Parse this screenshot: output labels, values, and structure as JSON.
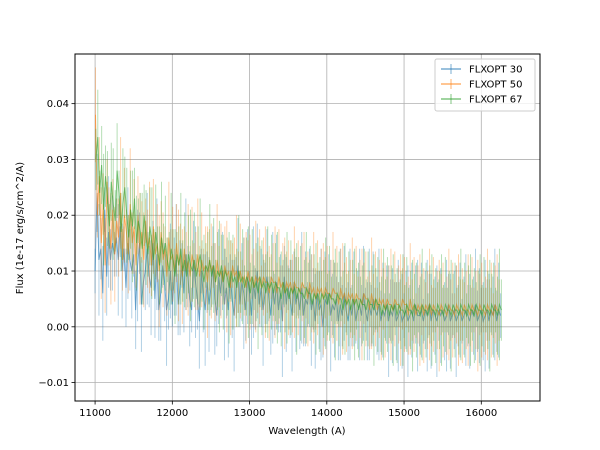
{
  "chart_data": {
    "type": "line",
    "title": "",
    "xlabel": "Wavelength (A)",
    "ylabel": "Flux (1e-17 erg/s/cm^2/A)",
    "xlim": [
      10740,
      16760
    ],
    "ylim": [
      -0.0133,
      0.0489
    ],
    "xticks": [
      11000,
      12000,
      13000,
      14000,
      15000,
      16000
    ],
    "yticks": [
      -0.01,
      0.0,
      0.01,
      0.02,
      0.03,
      0.04
    ],
    "xtick_labels": [
      "11000",
      "12000",
      "13000",
      "14000",
      "15000",
      "16000"
    ],
    "ytick_labels": [
      "−0.01",
      "0.00",
      "0.01",
      "0.02",
      "0.03",
      "0.04"
    ],
    "grid": true,
    "legend_position": "top-right",
    "series": [
      {
        "name": "FLXOPT 30",
        "color": "#1f77b4",
        "x_start": 11000,
        "x_step": 25,
        "values": [
          0.01,
          0.024,
          0.012,
          0.014,
          0.006,
          0.021,
          0.009,
          0.017,
          0.012,
          0.015,
          0.013,
          0.016,
          0.012,
          0.018,
          0.01,
          0.014,
          0.007,
          0.015,
          0.012,
          0.01,
          0.013,
          0.003,
          0.011,
          0.015,
          0.004,
          0.008,
          0.01,
          0.014,
          0.009,
          0.007,
          0.015,
          0.005,
          0.013,
          0.003,
          0.006,
          0.011,
          0.008,
          0.003,
          0.005,
          0.01,
          0.004,
          0.009,
          0.012,
          0.004,
          0.007,
          0.011,
          0.006,
          0.013,
          0.009,
          0.005,
          0.003,
          0.012,
          0.008,
          0.005,
          0.001,
          0.01,
          0.006,
          0.003,
          0.008,
          0.004,
          0.007,
          0.011,
          0.005,
          0.002,
          0.009,
          0.006,
          0.01,
          0.004,
          0.007,
          0.003,
          0.009,
          0.005,
          0.002,
          0.007,
          0.011,
          0.004,
          0.008,
          0.006,
          0.003,
          0.009,
          0.006,
          0.002,
          0.008,
          0.005,
          0.01,
          0.004,
          0.007,
          0.003,
          0.006,
          0.009,
          0.005,
          0.002,
          0.007,
          0.004,
          0.008,
          0.003,
          0.006,
          0.001,
          0.009,
          0.004,
          0.007,
          0.005,
          0.002,
          0.008,
          0.004,
          0.006,
          0.003,
          0.007,
          0.002,
          0.005,
          0.004,
          0.007,
          0.003,
          0.005,
          0.001,
          0.006,
          0.003,
          0.004,
          0.0,
          0.005,
          0.004,
          0.006,
          0.002,
          0.004,
          0.003,
          0.005,
          0.001,
          0.004,
          0.002,
          0.006,
          0.003,
          0.001,
          0.004,
          0.002,
          0.005,
          0.001,
          0.003,
          0.004,
          0.002,
          0.006,
          0.003,
          0.001,
          0.004,
          0.002,
          0.005,
          0.003,
          0.002,
          0.004,
          0.001,
          0.003,
          0.002,
          0.004,
          0.001,
          0.003,
          0.002,
          0.004,
          0.001,
          0.002,
          0.003,
          0.001,
          0.002,
          0.003,
          0.001,
          0.002,
          0.003,
          0.001,
          0.004,
          0.002,
          0.002,
          0.003,
          0.001,
          0.003,
          0.002,
          0.004,
          0.001,
          0.003,
          0.002,
          0.001,
          0.003,
          0.002,
          0.003,
          0.001,
          0.002,
          0.004,
          0.001,
          0.002,
          0.003,
          0.001,
          0.002,
          0.003,
          0.001,
          0.002,
          0.003,
          0.002,
          0.001,
          0.003,
          0.002,
          0.004,
          0.001,
          0.002,
          0.003,
          0.001,
          0.002,
          0.003,
          0.001,
          0.003,
          0.002,
          0.004,
          0.001,
          0.003,
          0.002
        ]
      },
      {
        "name": "FLXOPT 50",
        "color": "#ff7f0e",
        "x_start": 11005,
        "x_step": 25,
        "values": [
          0.038,
          0.02,
          0.027,
          0.015,
          0.022,
          0.011,
          0.026,
          0.018,
          0.014,
          0.021,
          0.013,
          0.019,
          0.016,
          0.024,
          0.012,
          0.02,
          0.017,
          0.013,
          0.022,
          0.015,
          0.018,
          0.011,
          0.02,
          0.014,
          0.017,
          0.012,
          0.019,
          0.014,
          0.016,
          0.011,
          0.018,
          0.013,
          0.015,
          0.01,
          0.017,
          0.012,
          0.014,
          0.009,
          0.016,
          0.012,
          0.013,
          0.01,
          0.015,
          0.011,
          0.013,
          0.009,
          0.014,
          0.01,
          0.012,
          0.009,
          0.013,
          0.011,
          0.01,
          0.013,
          0.009,
          0.012,
          0.01,
          0.011,
          0.008,
          0.012,
          0.01,
          0.011,
          0.008,
          0.012,
          0.009,
          0.01,
          0.008,
          0.011,
          0.009,
          0.01,
          0.007,
          0.011,
          0.009,
          0.01,
          0.008,
          0.01,
          0.008,
          0.009,
          0.007,
          0.01,
          0.008,
          0.009,
          0.007,
          0.009,
          0.008,
          0.009,
          0.007,
          0.009,
          0.008,
          0.008,
          0.006,
          0.009,
          0.008,
          0.008,
          0.006,
          0.009,
          0.007,
          0.008,
          0.006,
          0.008,
          0.007,
          0.008,
          0.006,
          0.008,
          0.007,
          0.007,
          0.006,
          0.008,
          0.007,
          0.007,
          0.005,
          0.008,
          0.006,
          0.007,
          0.005,
          0.007,
          0.006,
          0.007,
          0.005,
          0.007,
          0.006,
          0.006,
          0.005,
          0.007,
          0.006,
          0.006,
          0.004,
          0.007,
          0.005,
          0.006,
          0.004,
          0.006,
          0.005,
          0.006,
          0.004,
          0.006,
          0.005,
          0.005,
          0.004,
          0.006,
          0.005,
          0.005,
          0.003,
          0.006,
          0.004,
          0.005,
          0.003,
          0.005,
          0.004,
          0.005,
          0.003,
          0.005,
          0.004,
          0.004,
          0.003,
          0.005,
          0.004,
          0.004,
          0.003,
          0.005,
          0.004,
          0.004,
          0.002,
          0.005,
          0.003,
          0.004,
          0.002,
          0.004,
          0.003,
          0.004,
          0.002,
          0.004,
          0.003,
          0.004,
          0.002,
          0.004,
          0.003,
          0.003,
          0.002,
          0.004,
          0.003,
          0.003,
          0.002,
          0.004,
          0.003,
          0.003,
          0.002,
          0.004,
          0.003,
          0.003,
          0.002,
          0.004,
          0.003,
          0.003,
          0.002,
          0.004,
          0.003,
          0.003,
          0.002,
          0.004,
          0.003,
          0.003,
          0.002,
          0.004,
          0.003,
          0.003,
          0.002,
          0.004,
          0.003,
          0.003
        ]
      },
      {
        "name": "FLXOPT 67",
        "color": "#2ca02c",
        "x_start": 11010,
        "x_step": 25,
        "values": [
          0.03,
          0.034,
          0.024,
          0.029,
          0.021,
          0.027,
          0.023,
          0.018,
          0.026,
          0.022,
          0.019,
          0.028,
          0.024,
          0.017,
          0.022,
          0.025,
          0.02,
          0.016,
          0.021,
          0.018,
          0.023,
          0.015,
          0.019,
          0.017,
          0.014,
          0.02,
          0.016,
          0.013,
          0.018,
          0.015,
          0.012,
          0.017,
          0.014,
          0.011,
          0.016,
          0.013,
          0.015,
          0.012,
          0.01,
          0.014,
          0.012,
          0.009,
          0.013,
          0.011,
          0.014,
          0.01,
          0.012,
          0.009,
          0.013,
          0.011,
          0.01,
          0.012,
          0.009,
          0.011,
          0.013,
          0.01,
          0.008,
          0.011,
          0.01,
          0.012,
          0.009,
          0.011,
          0.008,
          0.01,
          0.009,
          0.011,
          0.008,
          0.01,
          0.009,
          0.007,
          0.01,
          0.008,
          0.009,
          0.007,
          0.01,
          0.008,
          0.009,
          0.007,
          0.009,
          0.008,
          0.006,
          0.009,
          0.007,
          0.008,
          0.006,
          0.009,
          0.007,
          0.008,
          0.006,
          0.008,
          0.007,
          0.008,
          0.006,
          0.008,
          0.007,
          0.007,
          0.005,
          0.008,
          0.006,
          0.007,
          0.005,
          0.007,
          0.006,
          0.007,
          0.005,
          0.007,
          0.006,
          0.006,
          0.005,
          0.007,
          0.006,
          0.006,
          0.004,
          0.006,
          0.005,
          0.006,
          0.004,
          0.006,
          0.005,
          0.006,
          0.004,
          0.006,
          0.005,
          0.005,
          0.004,
          0.006,
          0.005,
          0.005,
          0.003,
          0.005,
          0.004,
          0.005,
          0.003,
          0.005,
          0.004,
          0.005,
          0.003,
          0.005,
          0.004,
          0.004,
          0.003,
          0.005,
          0.004,
          0.004,
          0.003,
          0.005,
          0.004,
          0.004,
          0.002,
          0.004,
          0.003,
          0.004,
          0.002,
          0.004,
          0.003,
          0.004,
          0.002,
          0.004,
          0.003,
          0.003,
          0.002,
          0.004,
          0.003,
          0.003,
          0.002,
          0.004,
          0.003,
          0.003,
          0.002,
          0.004,
          0.003,
          0.003,
          0.002,
          0.004,
          0.003,
          0.003,
          0.002,
          0.004,
          0.003,
          0.003,
          0.002,
          0.004,
          0.003,
          0.003,
          0.002,
          0.004,
          0.003,
          0.003,
          0.002,
          0.004,
          0.003,
          0.003,
          0.002,
          0.004,
          0.003,
          0.003,
          0.002,
          0.004,
          0.003,
          0.003,
          0.002,
          0.004,
          0.003,
          0.003,
          0.002,
          0.004,
          0.003,
          0.003,
          0.002,
          0.004,
          0.003
        ]
      }
    ]
  }
}
